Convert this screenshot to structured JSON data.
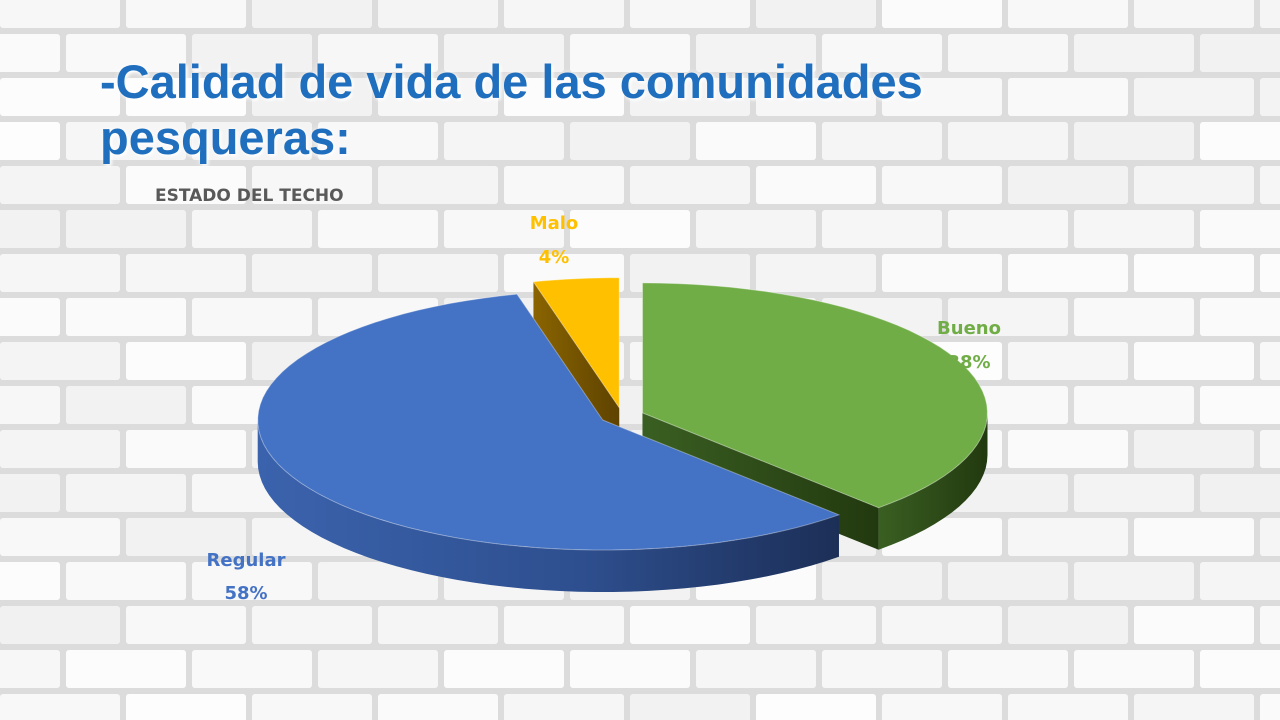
{
  "slide": {
    "title": "-Calidad de vida de las comunidades pesqueras:"
  },
  "colors": {
    "title": "#1F6FBE",
    "bueno": "#70AD47",
    "regular": "#4472C4",
    "malo": "#FFC000",
    "chart_title": "#595959"
  },
  "chart_data": {
    "type": "pie",
    "title": "ESTADO DEL TECHO",
    "style": "3d-exploded",
    "legend": "none",
    "slices": [
      {
        "label": "Bueno",
        "value": 38,
        "value_label": "38%",
        "color": "#70AD47"
      },
      {
        "label": "Regular",
        "value": 58,
        "value_label": "58%",
        "color": "#4472C4"
      },
      {
        "label": "Malo",
        "value": 4,
        "value_label": "4%",
        "color": "#FFC000"
      }
    ]
  }
}
